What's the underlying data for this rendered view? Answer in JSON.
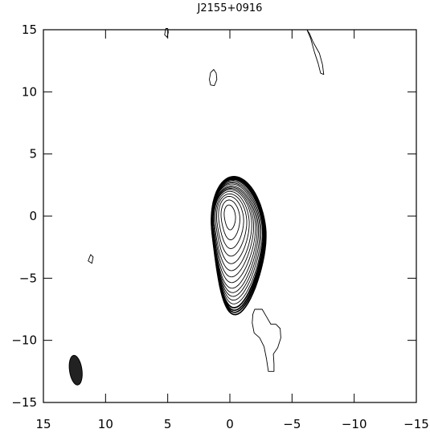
{
  "chart_data": {
    "type": "contour",
    "title": "J2155+0916",
    "xlabel": "",
    "ylabel": "",
    "xlim": [
      15,
      -15
    ],
    "ylim": [
      -15,
      15
    ],
    "x_ticks": [
      15,
      10,
      5,
      0,
      -5,
      -10,
      -15
    ],
    "x_tick_labels": [
      "15",
      "10",
      "5",
      "0",
      "−5",
      "−10",
      "−15"
    ],
    "y_ticks": [
      15,
      10,
      5,
      0,
      -5,
      -10,
      -15
    ],
    "y_tick_labels": [
      "15",
      "10",
      "5",
      "0",
      "−5",
      "−10",
      "−15"
    ],
    "grid": false,
    "core_peak": [
      0,
      0
    ],
    "core_contour_levels": [
      {
        "cx": 0.0,
        "cy": 0.0,
        "sx": 0.45,
        "sy": 0.9,
        "tail": 0.2
      },
      {
        "cx": 0.05,
        "cy": -0.1,
        "sx": 0.75,
        "sy": 1.4,
        "tail": 0.4
      },
      {
        "cx": 0.1,
        "cy": -0.2,
        "sx": 1.0,
        "sy": 1.8,
        "tail": 0.6
      },
      {
        "cx": 0.15,
        "cy": -0.3,
        "sx": 1.2,
        "sy": 2.1,
        "tail": 0.8
      },
      {
        "cx": 0.2,
        "cy": -0.4,
        "sx": 1.35,
        "sy": 2.4,
        "tail": 1.0
      },
      {
        "cx": 0.25,
        "cy": -0.5,
        "sx": 1.5,
        "sy": 2.65,
        "tail": 1.2
      },
      {
        "cx": 0.3,
        "cy": -0.6,
        "sx": 1.6,
        "sy": 2.85,
        "tail": 1.4
      },
      {
        "cx": 0.35,
        "cy": -0.7,
        "sx": 1.7,
        "sy": 3.05,
        "tail": 1.55
      },
      {
        "cx": 0.4,
        "cy": -0.8,
        "sx": 1.78,
        "sy": 3.25,
        "tail": 1.7
      },
      {
        "cx": 0.45,
        "cy": -0.85,
        "sx": 1.84,
        "sy": 3.45,
        "tail": 1.8
      },
      {
        "cx": 0.5,
        "cy": -0.9,
        "sx": 1.9,
        "sy": 3.6,
        "tail": 1.9
      },
      {
        "cx": 0.55,
        "cy": -0.95,
        "sx": 1.95,
        "sy": 3.75,
        "tail": 2.0
      },
      {
        "cx": 0.6,
        "cy": -1.0,
        "sx": 2.0,
        "sy": 3.9,
        "tail": 2.1
      },
      {
        "cx": 0.63,
        "cy": -1.05,
        "sx": 2.04,
        "sy": 4.05,
        "tail": 2.2
      },
      {
        "cx": 0.66,
        "cy": -1.1,
        "sx": 2.08,
        "sy": 4.15,
        "tail": 2.25
      },
      {
        "cx": 0.69,
        "cy": -1.12,
        "sx": 2.12,
        "sy": 4.25,
        "tail": 2.3
      },
      {
        "cx": 0.72,
        "cy": -1.15,
        "sx": 2.16,
        "sy": 4.35,
        "tail": 2.35
      }
    ],
    "outer_features": [
      {
        "name": "feature-top-left-blob",
        "points": [
          [
            1.3,
            11.8
          ],
          [
            1.1,
            11.5
          ],
          [
            1.05,
            11.0
          ],
          [
            1.25,
            10.5
          ],
          [
            1.55,
            10.55
          ],
          [
            1.65,
            11.0
          ],
          [
            1.55,
            11.55
          ]
        ]
      },
      {
        "name": "feature-top-edge-arc",
        "points": [
          [
            5.15,
            15.1
          ],
          [
            5.25,
            14.6
          ],
          [
            5.05,
            14.4
          ],
          [
            4.95,
            14.8
          ],
          [
            5.0,
            15.1
          ]
        ]
      },
      {
        "name": "feature-top-right-jet",
        "points": [
          [
            -6.2,
            15.0
          ],
          [
            -6.5,
            14.3
          ],
          [
            -6.8,
            13.2
          ],
          [
            -7.1,
            12.3
          ],
          [
            -7.3,
            11.5
          ],
          [
            -7.55,
            11.4
          ],
          [
            -7.45,
            12.2
          ],
          [
            -7.2,
            13.1
          ],
          [
            -6.7,
            14.0
          ],
          [
            -6.4,
            14.7
          ]
        ]
      },
      {
        "name": "feature-left-small",
        "points": [
          [
            11.2,
            -3.1
          ],
          [
            11.4,
            -3.6
          ],
          [
            11.1,
            -3.8
          ],
          [
            11.0,
            -3.3
          ]
        ]
      },
      {
        "name": "feature-lower-right-blob",
        "points": [
          [
            -2.0,
            -7.5
          ],
          [
            -2.6,
            -7.5
          ],
          [
            -2.95,
            -8.1
          ],
          [
            -3.3,
            -8.7
          ],
          [
            -3.7,
            -8.7
          ],
          [
            -4.05,
            -9.05
          ],
          [
            -4.1,
            -9.8
          ],
          [
            -3.85,
            -10.6
          ],
          [
            -3.5,
            -11.1
          ],
          [
            -3.55,
            -11.9
          ],
          [
            -3.55,
            -12.5
          ],
          [
            -3.1,
            -12.5
          ],
          [
            -2.95,
            -11.5
          ],
          [
            -2.75,
            -10.5
          ],
          [
            -2.4,
            -9.8
          ],
          [
            -1.95,
            -9.4
          ],
          [
            -1.8,
            -8.6
          ],
          [
            -1.85,
            -7.9
          ]
        ]
      }
    ],
    "beam": {
      "x": 12.4,
      "y": -12.4,
      "major": 1.2,
      "minor": 0.5,
      "pa": 8,
      "filled": true
    }
  }
}
